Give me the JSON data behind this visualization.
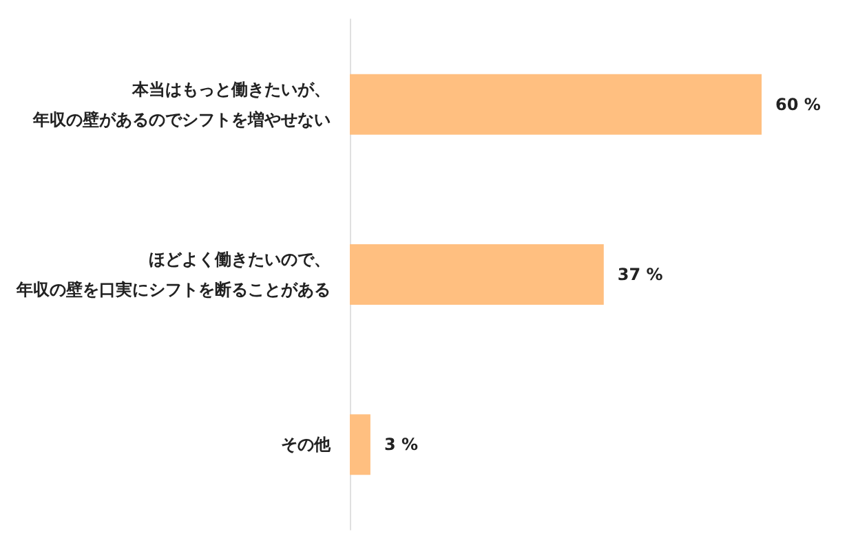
{
  "chart_data": {
    "type": "bar",
    "orientation": "horizontal",
    "categories": [
      "本当はもっと働きたいが、年収の壁があるのでシフトを増やせない",
      "ほどよく働きたいので、年収の壁を口実にシフトを断ることがある",
      "その他"
    ],
    "values": [
      60,
      37,
      3
    ],
    "color": "#ffbf80",
    "value_labels": [
      "60 %",
      "37 %",
      "3 %"
    ]
  }
}
